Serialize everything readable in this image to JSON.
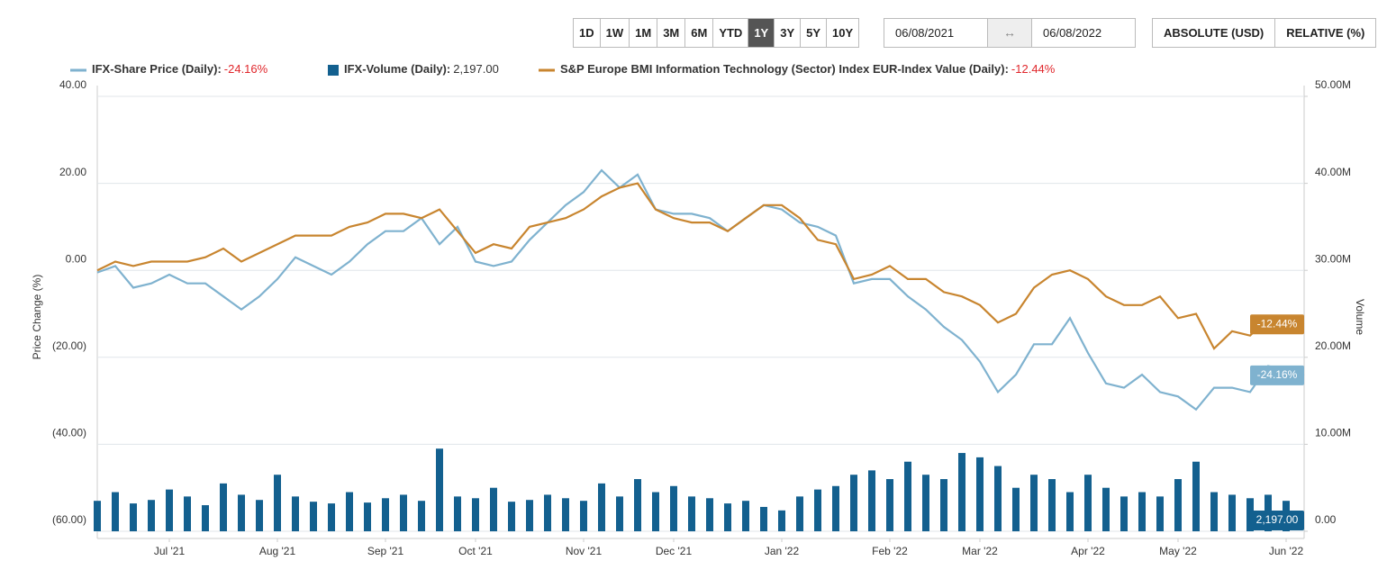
{
  "controls": {
    "ranges": [
      "1D",
      "1W",
      "1M",
      "3M",
      "6M",
      "YTD",
      "1Y",
      "3Y",
      "5Y",
      "10Y"
    ],
    "active_range": "1Y",
    "start_date": "06/08/2021",
    "date_separator": "↔",
    "end_date": "06/08/2022",
    "modes": [
      "ABSOLUTE (USD)",
      "RELATIVE (%)"
    ]
  },
  "chart_data": {
    "type": "combo",
    "y_label": "Price Change (%)",
    "y2_label": "Volume",
    "categories": [
      null,
      null,
      null,
      null,
      "Jul '21",
      null,
      null,
      null,
      null,
      null,
      "Aug '21",
      null,
      null,
      null,
      null,
      null,
      "Sep '21",
      null,
      null,
      null,
      null,
      "Oct '21",
      null,
      null,
      null,
      null,
      null,
      "Nov '21",
      null,
      null,
      null,
      null,
      "Dec '21",
      null,
      null,
      null,
      null,
      null,
      "Jan '22",
      null,
      null,
      null,
      null,
      null,
      "Feb '22",
      null,
      null,
      null,
      null,
      "Mar '22",
      null,
      null,
      null,
      null,
      null,
      "Apr '22",
      null,
      null,
      null,
      null,
      "May '22",
      null,
      null,
      null,
      null,
      null,
      "Jun '22",
      null
    ],
    "ylim": [
      -60,
      40
    ],
    "yticks": [
      {
        "value": -60,
        "label": "(60.00)"
      },
      {
        "value": -40,
        "label": "(40.00)"
      },
      {
        "value": -20,
        "label": "(20.00)"
      },
      {
        "value": 0,
        "label": "0.00"
      },
      {
        "value": 20,
        "label": "20.00"
      },
      {
        "value": 40,
        "label": "40.00"
      }
    ],
    "y2lim": [
      0,
      50000000
    ],
    "y2ticks": [
      {
        "value": 0,
        "label": "0.00"
      },
      {
        "value": 10000000,
        "label": "10.00M"
      },
      {
        "value": 20000000,
        "label": "20.00M"
      },
      {
        "value": 30000000,
        "label": "30.00M"
      },
      {
        "value": 40000000,
        "label": "40.00M"
      },
      {
        "value": 50000000,
        "label": "50.00M"
      }
    ],
    "grid": true,
    "series": [
      {
        "name": "IFX-Share Price (Daily):",
        "type": "line",
        "color": "#7fb2cf",
        "latest_label": "-24.16%",
        "values": [
          -0.5,
          1,
          -4,
          -3,
          -1,
          -3,
          -3,
          -6,
          -9,
          -6,
          -2,
          3,
          1,
          -1,
          2,
          6,
          9,
          9,
          12,
          6,
          10,
          2,
          1,
          2,
          7,
          11,
          15,
          18,
          23,
          19,
          22,
          14,
          13,
          13,
          12,
          9,
          12,
          15,
          14,
          11,
          10,
          8,
          -3,
          -2,
          -2,
          -6,
          -9,
          -13,
          -16,
          -21,
          -28,
          -24,
          -17,
          -17,
          -11,
          -19,
          -26,
          -27,
          -24,
          -28,
          -29,
          -32,
          -27,
          -27,
          -28,
          -22,
          -23,
          -24.16
        ]
      },
      {
        "name": "IFX-Volume (Daily):",
        "type": "bar",
        "axis": "y2",
        "color": "#13608f",
        "latest_label": "2,197.00",
        "values": [
          3500000,
          4500000,
          3200000,
          3600000,
          4800000,
          4000000,
          3000000,
          5500000,
          4200000,
          3600000,
          6500000,
          4000000,
          3400000,
          3200000,
          4500000,
          3300000,
          3800000,
          4200000,
          3500000,
          9500000,
          4000000,
          3800000,
          5000000,
          3400000,
          3600000,
          4200000,
          3800000,
          3500000,
          5500000,
          4000000,
          6000000,
          4500000,
          5200000,
          4000000,
          3800000,
          3200000,
          3500000,
          2800000,
          2400000,
          4000000,
          4800000,
          5200000,
          6500000,
          7000000,
          6000000,
          8000000,
          6500000,
          6000000,
          9000000,
          8500000,
          7500000,
          5000000,
          6500000,
          6000000,
          4500000,
          6500000,
          5000000,
          4000000,
          4500000,
          4000000,
          6000000,
          8000000,
          4500000,
          4200000,
          3800000,
          4200000,
          3500000,
          2197
        ]
      },
      {
        "name": "S&P Europe BMI Information Technology (Sector) Index EUR-Index Value (Daily):",
        "type": "line",
        "color": "#c8852f",
        "latest_label": "-12.44%",
        "values": [
          0,
          2,
          1,
          2,
          2,
          2,
          3,
          5,
          2,
          4,
          6,
          8,
          8,
          8,
          10,
          11,
          13,
          13,
          12,
          14,
          9,
          4,
          6,
          5,
          10,
          11,
          12,
          14,
          17,
          19,
          20,
          14,
          12,
          11,
          11,
          9,
          12,
          15,
          15,
          12,
          7,
          6,
          -2,
          -1,
          1,
          -2,
          -2,
          -5,
          -6,
          -8,
          -12,
          -10,
          -4,
          -1,
          0,
          -2,
          -6,
          -8,
          -8,
          -6,
          -11,
          -10,
          -18,
          -14,
          -15,
          -11,
          -12,
          -12.44
        ]
      }
    ]
  }
}
